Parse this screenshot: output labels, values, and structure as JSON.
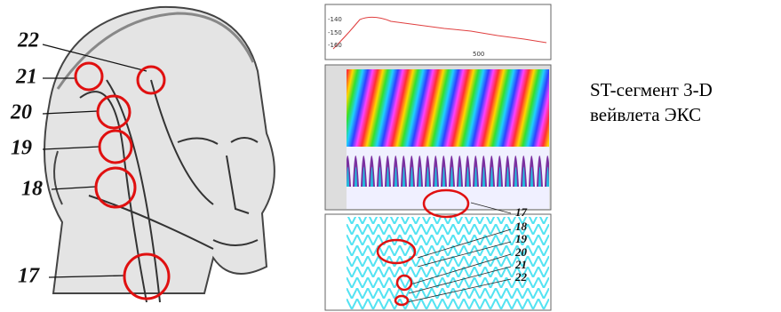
{
  "head_figure": {
    "labels": [
      "22",
      "21",
      "20",
      "19",
      "18",
      "17"
    ]
  },
  "signal_plot": {
    "y_labels": [
      "-140",
      "-150",
      "-160"
    ],
    "x_label": "500"
  },
  "scalogram_labels": [
    "17",
    "18",
    "19",
    "20",
    "21",
    "22"
  ],
  "caption": [
    "ST-сегмент 3-D",
    "вейвлета ЭКС"
  ]
}
